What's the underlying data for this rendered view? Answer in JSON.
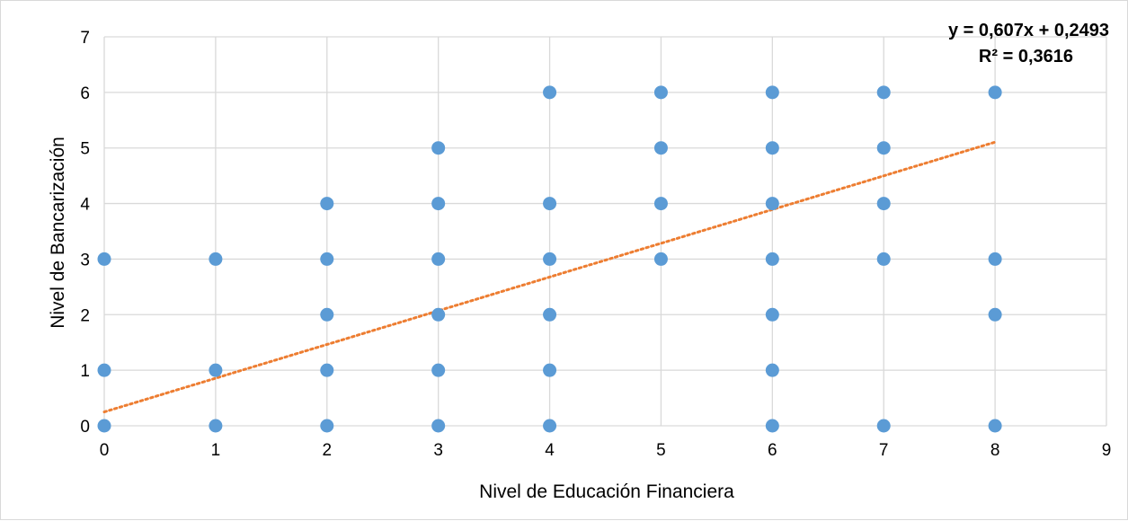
{
  "chart_data": {
    "type": "scatter",
    "title": "",
    "xlabel": "Nivel de Educación Financiera",
    "ylabel": "Nivel de Bancarización",
    "xlim": [
      0,
      9
    ],
    "ylim": [
      0,
      7
    ],
    "x_ticks": [
      "0",
      "1",
      "2",
      "3",
      "4",
      "5",
      "6",
      "7",
      "8",
      "9"
    ],
    "y_ticks": [
      "0",
      "1",
      "2",
      "3",
      "4",
      "5",
      "6",
      "7"
    ],
    "grid": true,
    "legend": "none",
    "marker_color": "#5b9bd5",
    "trendline_color": "#ed7d31",
    "points": [
      [
        0,
        0
      ],
      [
        0,
        1
      ],
      [
        0,
        3
      ],
      [
        1,
        0
      ],
      [
        1,
        1
      ],
      [
        1,
        3
      ],
      [
        2,
        0
      ],
      [
        2,
        1
      ],
      [
        2,
        2
      ],
      [
        2,
        3
      ],
      [
        2,
        4
      ],
      [
        3,
        0
      ],
      [
        3,
        1
      ],
      [
        3,
        2
      ],
      [
        3,
        3
      ],
      [
        3,
        4
      ],
      [
        3,
        5
      ],
      [
        4,
        0
      ],
      [
        4,
        1
      ],
      [
        4,
        2
      ],
      [
        4,
        3
      ],
      [
        4,
        4
      ],
      [
        4,
        6
      ],
      [
        5,
        3
      ],
      [
        5,
        4
      ],
      [
        5,
        5
      ],
      [
        5,
        6
      ],
      [
        6,
        0
      ],
      [
        6,
        1
      ],
      [
        6,
        2
      ],
      [
        6,
        3
      ],
      [
        6,
        4
      ],
      [
        6,
        5
      ],
      [
        6,
        6
      ],
      [
        7,
        0
      ],
      [
        7,
        3
      ],
      [
        7,
        4
      ],
      [
        7,
        5
      ],
      [
        7,
        6
      ],
      [
        8,
        0
      ],
      [
        8,
        2
      ],
      [
        8,
        3
      ],
      [
        8,
        6
      ]
    ],
    "trendline": {
      "type": "linear",
      "slope": 0.607,
      "intercept": 0.2493,
      "x_range": [
        0,
        8
      ],
      "equation_label": "y = 0,607x + 0,2493",
      "r2_label": "R² = 0,3616"
    }
  }
}
